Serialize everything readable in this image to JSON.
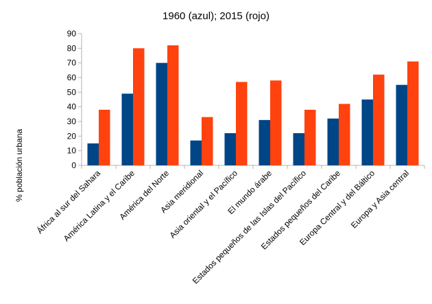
{
  "chart_data": {
    "type": "bar",
    "title": "1960 (azul); 2015 (rojo)",
    "xlabel": "",
    "ylabel": "% población urbana",
    "ylim": [
      0,
      90
    ],
    "yticks": [
      0,
      10,
      20,
      30,
      40,
      50,
      60,
      70,
      80,
      90
    ],
    "grid": false,
    "legend": "none",
    "categories": [
      "África al sur del Sahara",
      "América Latina y el Caribe",
      "América del Norte",
      "Asia meridional",
      "Asia oriental y el Pacífico",
      "El mundo árabe",
      "Estados pequeños de las Islas del Pacífico",
      "Estados pequeños del Caribe",
      "Europa Central y del Báltico",
      "Europa y Asia central"
    ],
    "series": [
      {
        "color": "#004586",
        "values": [
          15,
          49,
          70,
          17,
          22,
          31,
          22,
          32,
          45,
          55
        ]
      },
      {
        "color": "#ff420e",
        "values": [
          38,
          80,
          82,
          33,
          57,
          58,
          38,
          42,
          62,
          71
        ]
      }
    ]
  }
}
